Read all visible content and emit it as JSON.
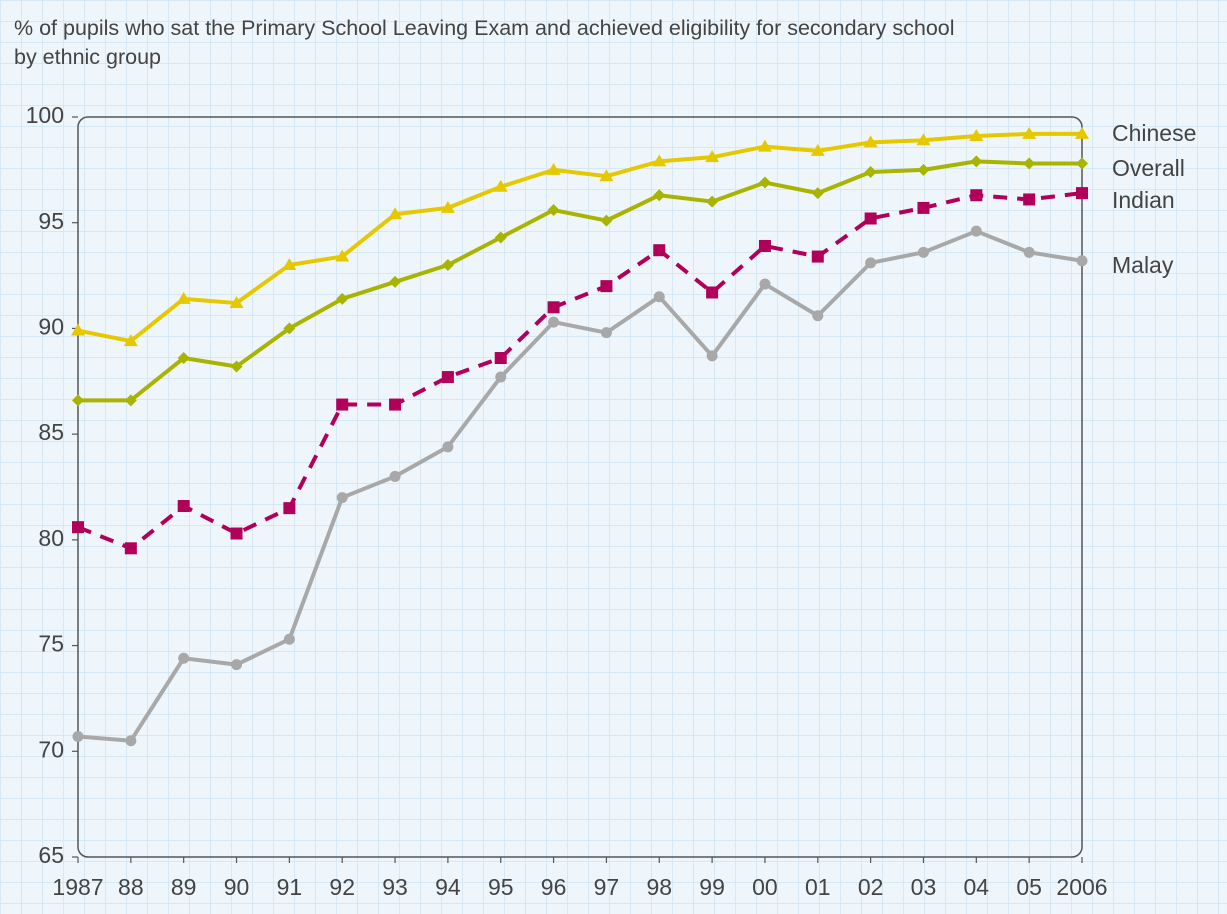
{
  "chart_data": {
    "type": "line",
    "title": "% of pupils who sat the Primary School Leaving Exam and achieved eligibility for secondary school by ethnic group",
    "categories": [
      "1987",
      "88",
      "89",
      "90",
      "91",
      "92",
      "93",
      "94",
      "95",
      "96",
      "97",
      "98",
      "99",
      "00",
      "01",
      "02",
      "03",
      "04",
      "05",
      "2006"
    ],
    "series": [
      {
        "name": "Chinese",
        "color": "#e6c800",
        "marker": "triangle",
        "dashed": false,
        "values": [
          89.9,
          89.4,
          91.4,
          91.2,
          93.0,
          93.4,
          95.4,
          95.7,
          96.7,
          97.5,
          97.2,
          97.9,
          98.1,
          98.6,
          98.4,
          98.8,
          98.9,
          99.1,
          99.2,
          99.2
        ]
      },
      {
        "name": "Overall",
        "color": "#a8b400",
        "marker": "diamond",
        "dashed": false,
        "values": [
          86.6,
          86.6,
          88.6,
          88.2,
          90.0,
          91.4,
          92.2,
          93.0,
          94.3,
          95.6,
          95.1,
          96.3,
          96.0,
          96.9,
          96.4,
          97.4,
          97.5,
          97.9,
          97.8,
          97.8
        ]
      },
      {
        "name": "Indian",
        "color": "#b0005a",
        "marker": "square",
        "dashed": true,
        "values": [
          80.6,
          79.6,
          81.6,
          80.3,
          81.5,
          86.4,
          86.4,
          87.7,
          88.6,
          91.0,
          92.0,
          93.7,
          91.7,
          93.9,
          93.4,
          95.2,
          95.7,
          96.3,
          96.1,
          96.4
        ]
      },
      {
        "name": "Malay",
        "color": "#a8a8a8",
        "marker": "circle",
        "dashed": false,
        "values": [
          70.7,
          70.5,
          74.4,
          74.1,
          75.3,
          82.0,
          83.0,
          84.4,
          87.7,
          90.3,
          89.8,
          91.5,
          88.7,
          92.1,
          90.6,
          93.1,
          93.6,
          94.6,
          93.6,
          93.2
        ]
      }
    ],
    "ylim": [
      65,
      100
    ],
    "yticks": [
      65,
      70,
      75,
      80,
      85,
      90,
      95,
      100
    ],
    "grid": false
  }
}
